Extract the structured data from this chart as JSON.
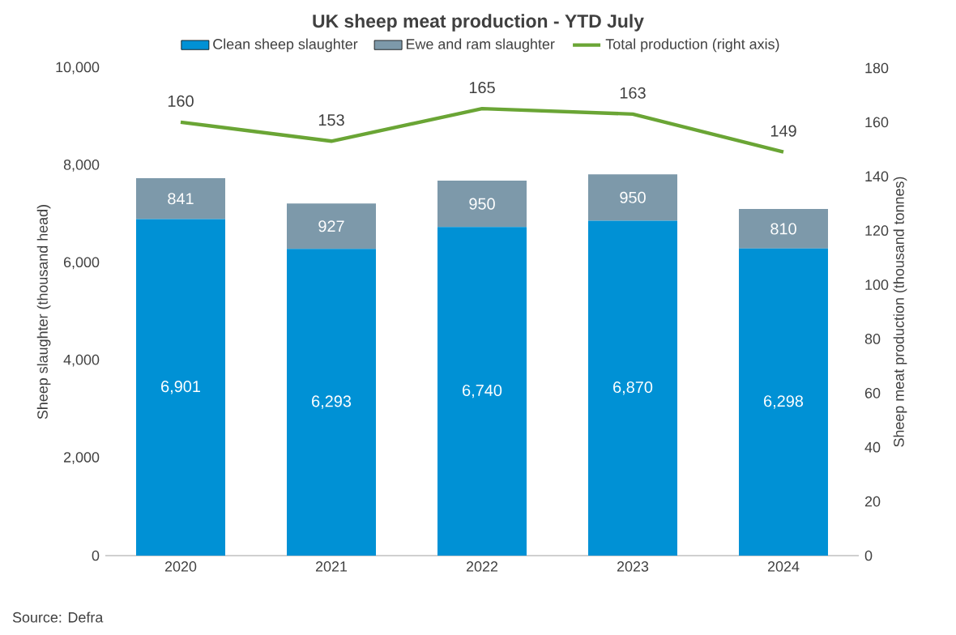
{
  "chart_data": {
    "type": "bar",
    "title": "UK sheep meat production  - YTD July",
    "ylabel": "Sheep slaughter (thousand head)",
    "y2label": "Sheep meat production (thousand tonnes)",
    "categories": [
      "2020",
      "2021",
      "2022",
      "2023",
      "2024"
    ],
    "stacked": true,
    "legend": "top",
    "marker": "none",
    "line_style": "solid",
    "series": [
      {
        "name": "Clean sheep slaughter",
        "color": "#0091d5",
        "values": [
          6901,
          6293,
          6740,
          6870,
          6298
        ],
        "value_labels": [
          "6,901",
          "6,293",
          "6,740",
          "6,870",
          "6,298"
        ]
      },
      {
        "name": "Ewe and ram slaughter",
        "color": "#7d99aa",
        "values": [
          841,
          927,
          950,
          950,
          810
        ],
        "value_labels": [
          "841",
          "927",
          "950",
          "950",
          "810"
        ]
      },
      {
        "name": "Total production (right axis)",
        "type": "line",
        "axis": "y2",
        "color": "#6aa535",
        "values": [
          160,
          153,
          165,
          163,
          149
        ],
        "value_labels": [
          "160",
          "153",
          "165",
          "163",
          "149"
        ]
      }
    ],
    "ylim": [
      0,
      10000
    ],
    "yticks": [
      {
        "value": 0,
        "label": "0"
      },
      {
        "value": 2000,
        "label": "2,000"
      },
      {
        "value": 4000,
        "label": "4,000"
      },
      {
        "value": 6000,
        "label": "6,000"
      },
      {
        "value": 8000,
        "label": "8,000"
      },
      {
        "value": 10000,
        "label": "10,000"
      }
    ],
    "y2lim": [
      0,
      180
    ],
    "y2ticks": [
      0,
      20,
      40,
      60,
      80,
      100,
      120,
      140,
      160,
      180
    ],
    "annotations": [
      "Source: Defra"
    ]
  }
}
